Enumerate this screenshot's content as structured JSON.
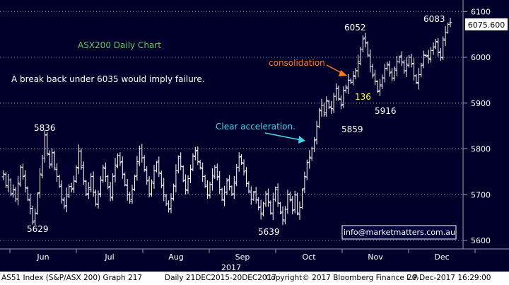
{
  "chart_data": {
    "type": "ohlc",
    "title": "ASX200 Daily Chart",
    "ylim": [
      5595,
      6110
    ],
    "yticks": [
      5600,
      5700,
      5800,
      5900,
      6000,
      6100
    ],
    "month_labels": [
      "Jun",
      "Jul",
      "Aug",
      "Sep",
      "Oct",
      "Nov",
      "Dec"
    ],
    "year_label": "2017",
    "last_price": "6075.600",
    "annotations": {
      "note": "A break back under 6035 would imply failure.",
      "acceleration": "Clear acceleration.",
      "consolidation": "consolidation",
      "count": "136"
    },
    "levels": [
      {
        "label": "5836",
        "value": 5836
      },
      {
        "label": "5629",
        "value": 5629
      },
      {
        "label": "5639",
        "value": 5639
      },
      {
        "label": "5859",
        "value": 5859
      },
      {
        "label": "5916",
        "value": 5916
      },
      {
        "label": "6052",
        "value": 6052
      },
      {
        "label": "6083",
        "value": 6083
      }
    ],
    "close": [
      5745,
      5720,
      5732,
      5700,
      5712,
      5690,
      5725,
      5760,
      5740,
      5715,
      5690,
      5670,
      5640,
      5660,
      5702,
      5745,
      5780,
      5830,
      5790,
      5765,
      5792,
      5758,
      5740,
      5718,
      5690,
      5675,
      5700,
      5718,
      5712,
      5730,
      5760,
      5795,
      5760,
      5730,
      5700,
      5715,
      5740,
      5705,
      5680,
      5700,
      5732,
      5760,
      5740,
      5715,
      5695,
      5740,
      5765,
      5785,
      5770,
      5745,
      5722,
      5700,
      5686,
      5712,
      5740,
      5772,
      5800,
      5780,
      5755,
      5730,
      5702,
      5728,
      5752,
      5770,
      5748,
      5720,
      5700,
      5680,
      5668,
      5692,
      5720,
      5752,
      5780,
      5762,
      5730,
      5712,
      5735,
      5755,
      5785,
      5795,
      5772,
      5760,
      5740,
      5718,
      5700,
      5722,
      5742,
      5760,
      5738,
      5712,
      5690,
      5705,
      5730,
      5718,
      5700,
      5728,
      5760,
      5782,
      5770,
      5750,
      5725,
      5708,
      5690,
      5704,
      5690,
      5672,
      5660,
      5680,
      5700,
      5684,
      5660,
      5690,
      5712,
      5682,
      5660,
      5645,
      5668,
      5700,
      5690,
      5665,
      5700,
      5660,
      5672,
      5710,
      5740,
      5770,
      5782,
      5800,
      5818,
      5850,
      5885,
      5895,
      5876,
      5905,
      5890,
      5888,
      5915,
      5932,
      5910,
      5895,
      5928,
      5935,
      5950,
      5945,
      5960,
      5970,
      5990,
      6018,
      6040,
      6032,
      6005,
      5980,
      5960,
      5948,
      5925,
      5940,
      5955,
      5975,
      5985,
      5966,
      5955,
      5975,
      5990,
      6000,
      5990,
      5970,
      5985,
      6000,
      5985,
      5960,
      5945,
      5962,
      5982,
      6005,
      6002,
      5998,
      6015,
      6022,
      6035,
      6010,
      6000,
      6040,
      6055,
      6072,
      6076
    ],
    "yoff": [
      2,
      -1,
      -3,
      0,
      3,
      -2,
      1,
      -3,
      0,
      2,
      -1,
      -2,
      0,
      3,
      -1,
      2,
      -3,
      0,
      1,
      -2
    ],
    "spans": [
      14,
      9,
      22,
      6,
      17,
      11,
      26,
      8,
      13,
      19,
      7,
      24,
      10,
      16,
      5,
      21,
      12,
      18,
      9,
      15
    ]
  }
}
